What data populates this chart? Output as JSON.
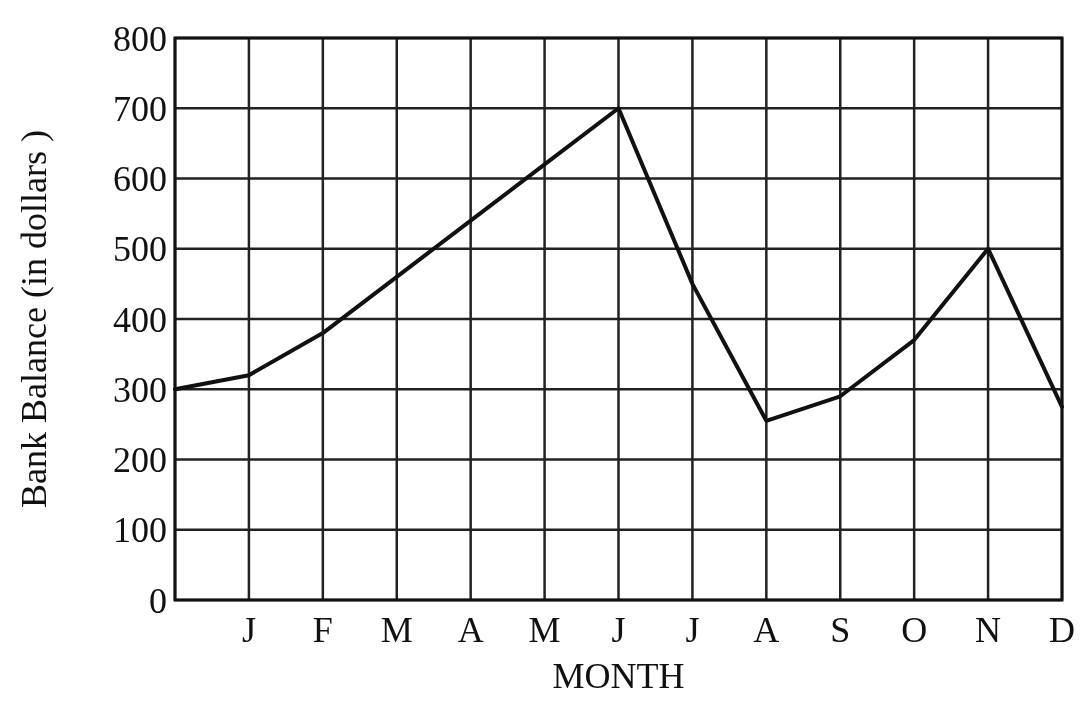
{
  "chart_data": {
    "type": "line",
    "xlabel": "MONTH",
    "ylabel": "Bank Balance (in dollars )",
    "categories": [
      null,
      "J",
      "F",
      "M",
      "A",
      "M",
      "J",
      "J",
      "A",
      "S",
      "O",
      "N",
      "D"
    ],
    "series": [
      {
        "color": "#111111",
        "values": [
          300,
          320,
          380,
          460,
          540,
          620,
          700,
          450,
          255,
          290,
          370,
          500,
          275
        ]
      }
    ],
    "ylim": [
      0,
      800
    ],
    "yticks": [
      0,
      100,
      200,
      300,
      400,
      500,
      600,
      700,
      800
    ],
    "grid": true,
    "marker": "none",
    "line_style": "solid"
  }
}
